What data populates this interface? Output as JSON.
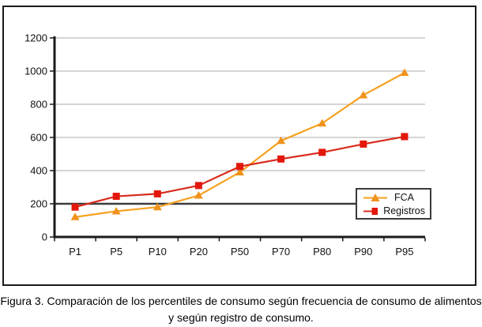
{
  "chart_data": {
    "type": "line",
    "title": "",
    "xlabel": "",
    "ylabel": "",
    "categories": [
      "P1",
      "P5",
      "P10",
      "P20",
      "P50",
      "P70",
      "P80",
      "P90",
      "P95"
    ],
    "series": [
      {
        "name": "FCA",
        "marker": "triangle",
        "color": "#F6A01E",
        "marker_color": "#F0921B",
        "values": [
          120,
          155,
          180,
          250,
          390,
          580,
          685,
          855,
          990
        ]
      },
      {
        "name": "Registros",
        "marker": "square",
        "color": "#D92B1C",
        "marker_color": "#E3170B",
        "values": [
          180,
          245,
          260,
          310,
          425,
          470,
          510,
          560,
          605
        ]
      }
    ],
    "ylim": [
      0,
      1200
    ],
    "yticks": [
      0,
      200,
      400,
      600,
      800,
      1000,
      1200
    ],
    "reference_line_y": 200,
    "grid": "horizontal",
    "legend_position": "inside-bottom-right",
    "colors": {
      "grid": "#ABABAB",
      "reference_line": "#3C3C3C",
      "axis": "#1A1A1A",
      "frame_border": "#1A1A1A",
      "legend_border": "#3A3A3A",
      "background": "#FFFFFF"
    }
  },
  "legend": {
    "fca_label": "FCA",
    "registros_label": "Registros"
  },
  "caption": {
    "line1": "Figura 3. Comparación de los percentiles de consumo según frecuencia de consumo de alimentos",
    "line2": "y según registro de consumo."
  }
}
